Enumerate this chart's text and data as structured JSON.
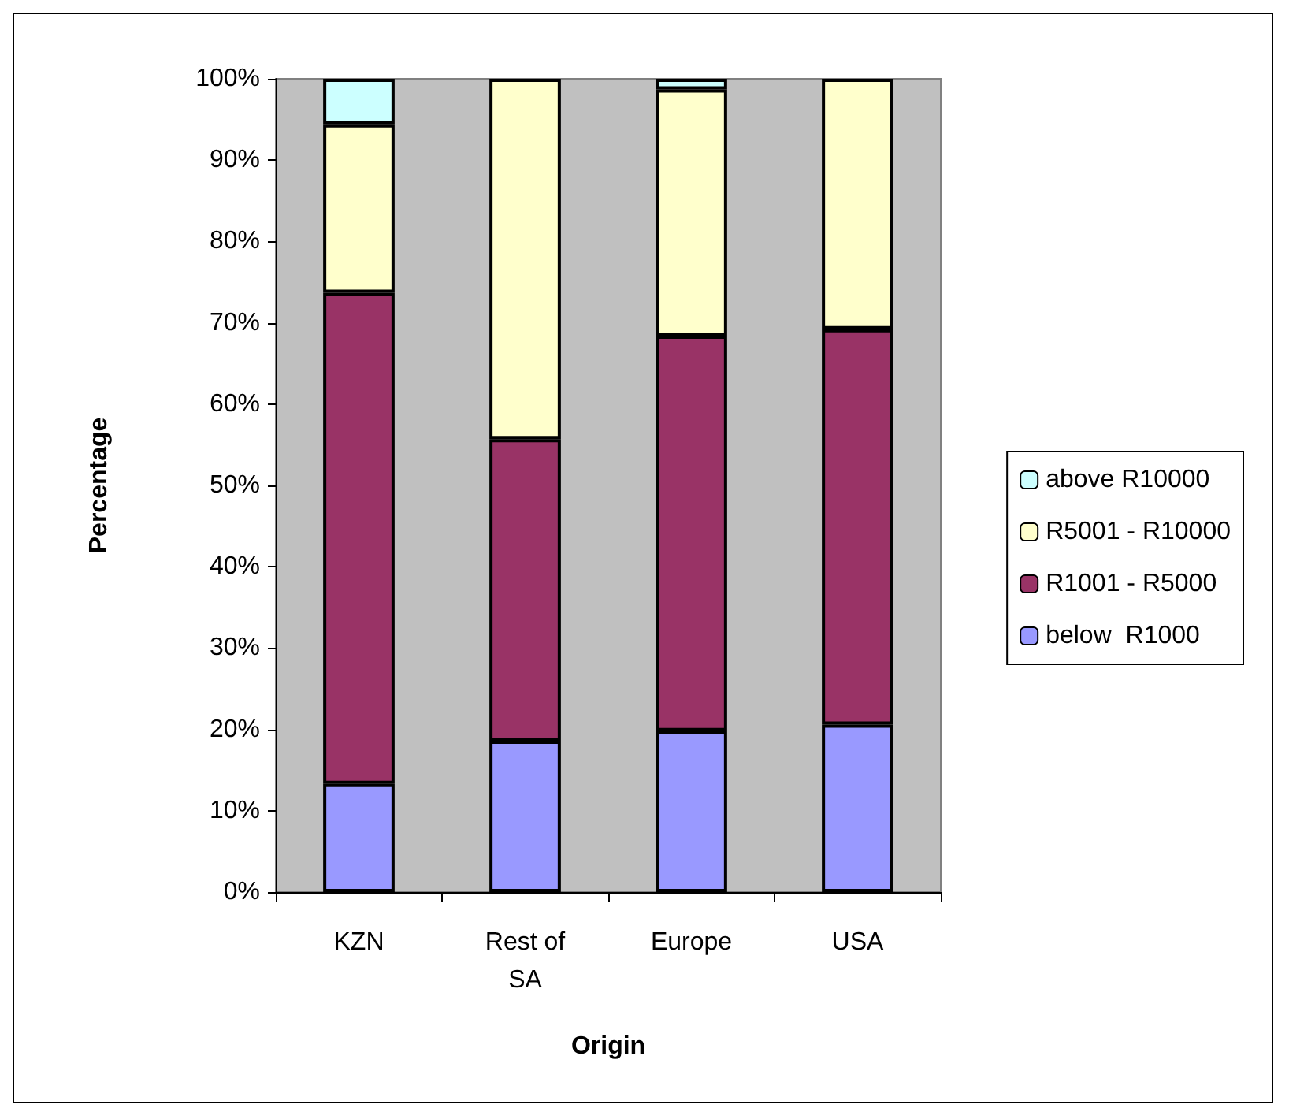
{
  "chart_data": {
    "type": "bar",
    "stacked": true,
    "xlabel": "Origin",
    "ylabel": "Percentage",
    "categories": [
      "KZN",
      "Rest of\nSA",
      "Europe",
      "USA"
    ],
    "series": [
      {
        "name": "below  R1000",
        "color": "#9999ff",
        "values": [
          13.3,
          18.6,
          19.8,
          20.6
        ]
      },
      {
        "name": "R1001 - R5000",
        "color": "#993366",
        "values": [
          60.4,
          37.1,
          48.6,
          48.6
        ]
      },
      {
        "name": "R5001 - R10000",
        "color": "#ffffcc",
        "values": [
          20.7,
          44.3,
          30.3,
          30.8
        ]
      },
      {
        "name": "above R10000",
        "color": "#ccffff",
        "values": [
          5.6,
          0,
          1.3,
          0
        ]
      }
    ],
    "ylim": [
      0,
      100
    ],
    "yticks": [
      {
        "value": 0,
        "label": "0%"
      },
      {
        "value": 10,
        "label": "10%"
      },
      {
        "value": 20,
        "label": "20%"
      },
      {
        "value": 30,
        "label": "30%"
      },
      {
        "value": 40,
        "label": "40%"
      },
      {
        "value": 50,
        "label": "50%"
      },
      {
        "value": 60,
        "label": "60%"
      },
      {
        "value": 70,
        "label": "70%"
      },
      {
        "value": 80,
        "label": "80%"
      },
      {
        "value": 90,
        "label": "90%"
      },
      {
        "value": 100,
        "label": "100%"
      }
    ],
    "grid": false,
    "legend": "right"
  }
}
